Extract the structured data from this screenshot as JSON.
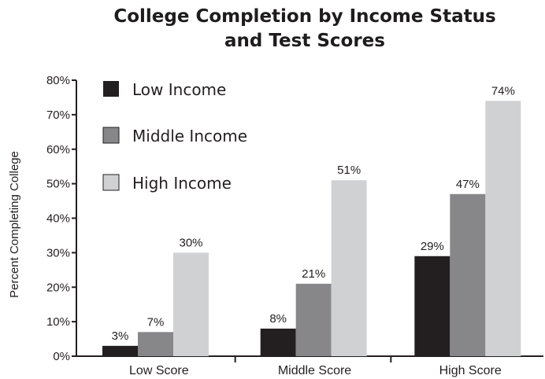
{
  "chart_data": {
    "type": "bar",
    "title_line1": "College Completion by Income Status",
    "title_line2": "and Test Scores",
    "xlabel": "",
    "ylabel": "Percent Completing College",
    "ylim": [
      0,
      80
    ],
    "yticks": [
      0,
      10,
      20,
      30,
      40,
      50,
      60,
      70,
      80
    ],
    "ytick_labels": [
      "0%",
      "10%",
      "20%",
      "30%",
      "40%",
      "50%",
      "60%",
      "70%",
      "80%"
    ],
    "categories": [
      "Low Score",
      "Middle Score",
      "High Score"
    ],
    "series": [
      {
        "name": "Low Income",
        "values": [
          3,
          8,
          29
        ],
        "labels": [
          "3%",
          "8%",
          "29%"
        ],
        "color": "#231f20"
      },
      {
        "name": "Middle Income",
        "values": [
          7,
          21,
          47
        ],
        "labels": [
          "7%",
          "21%",
          "47%"
        ],
        "color": "#878789"
      },
      {
        "name": "High Income",
        "values": [
          30,
          51,
          74
        ],
        "labels": [
          "30%",
          "51%",
          "74%"
        ],
        "color": "#d0d1d3"
      }
    ],
    "legend_position": "top-left",
    "grid": false
  }
}
